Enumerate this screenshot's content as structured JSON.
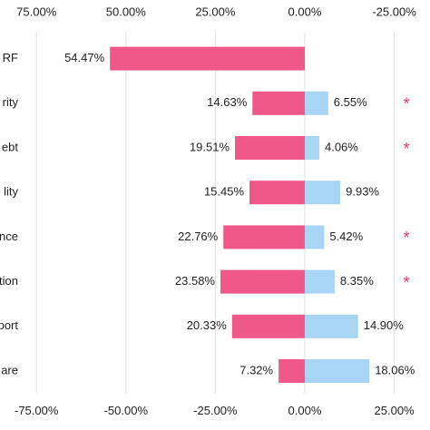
{
  "chart_data": {
    "type": "diverging-bar",
    "categories": [
      "RF",
      "rity",
      "ebt",
      "lity",
      "nce",
      "tion",
      "port",
      "are"
    ],
    "series": [
      {
        "color": "#f0588a",
        "axis": "x2",
        "values": [
          54.47,
          14.63,
          19.51,
          15.45,
          22.76,
          23.58,
          20.33,
          7.32
        ],
        "value_labels": [
          "54.47%",
          "14.63%",
          "19.51%",
          "15.45%",
          "22.76%",
          "23.58%",
          "20.33%",
          "7.32%"
        ]
      },
      {
        "color": "#a8d4f5",
        "axis": "x",
        "values": [
          0,
          6.55,
          4.06,
          9.93,
          5.42,
          8.35,
          14.9,
          18.06
        ],
        "value_labels": [
          null,
          "6.55%",
          "4.06%",
          "9.93%",
          "5.42%",
          "8.35%",
          "14.90%",
          "18.06%"
        ]
      }
    ],
    "annotations": [
      null,
      "*",
      "*",
      null,
      "*",
      "*",
      null,
      null
    ],
    "annotation_color": "#e8336f",
    "xlim": [
      -85.2,
      35.0
    ],
    "xticks": [
      {
        "value": -75,
        "label": "-75.00%"
      },
      {
        "value": -50,
        "label": "-50.00%"
      },
      {
        "value": -25,
        "label": "-25.00%"
      },
      {
        "value": 0,
        "label": "0.00%"
      },
      {
        "value": 25,
        "label": "25.00%"
      }
    ],
    "x2lim": [
      85.2,
      -35.0
    ],
    "x2ticks": [
      {
        "value": 75,
        "label": "75.00%"
      },
      {
        "value": 50,
        "label": "50.00%"
      },
      {
        "value": 25,
        "label": "25.00%"
      },
      {
        "value": 0,
        "label": "0.00%"
      },
      {
        "value": -25,
        "label": "-25.00%"
      }
    ],
    "grid": true
  }
}
